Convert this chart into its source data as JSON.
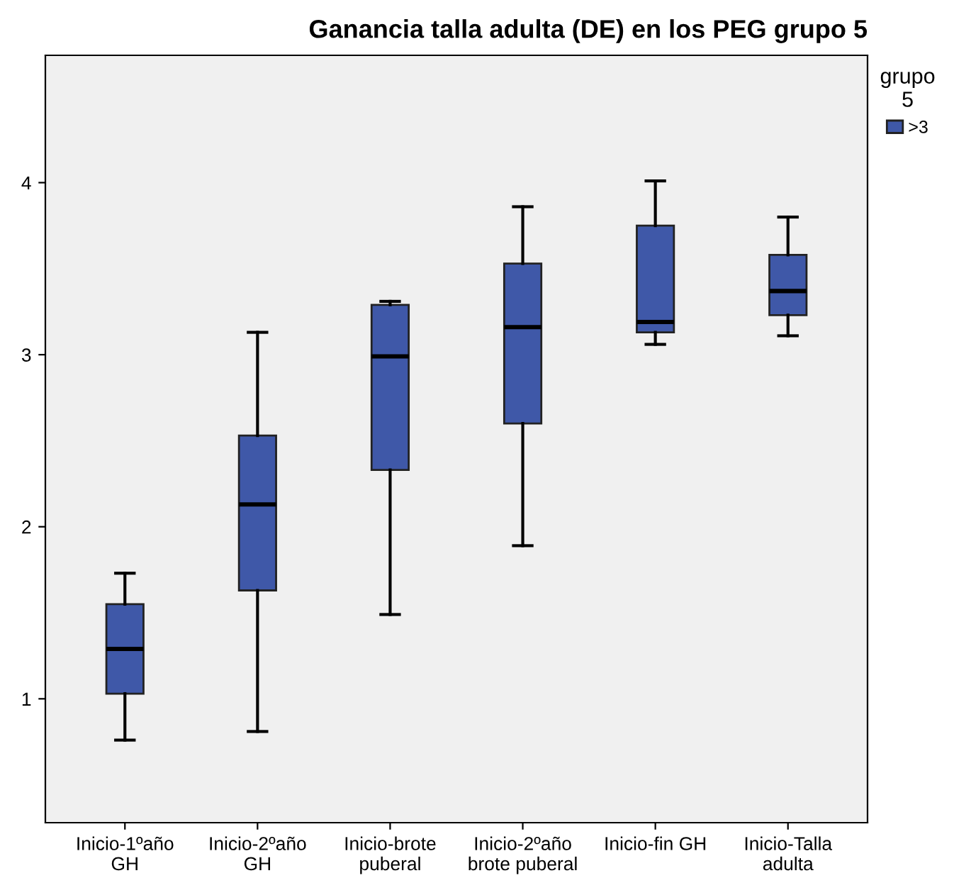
{
  "chart_data": {
    "type": "box",
    "title": "Ganancia talla adulta (DE) en los PEG grupo 5",
    "categories": [
      "Inicio-1ºaño\nGH",
      "Inicio-2ºaño\nGH",
      "Inicio-brote\npuberal",
      "Inicio-2ºaño\nbrote puberal",
      "Inicio-fin GH",
      "Inicio-Talla\nadulta"
    ],
    "legend_title": "grupo\n5",
    "legend": "top right",
    "grid": false,
    "series": [
      {
        "name": ">3",
        "color": "#3f58a8",
        "boxes": [
          {
            "low": 0.76,
            "q1": 1.03,
            "median": 1.29,
            "q3": 1.55,
            "high": 1.73
          },
          {
            "low": 0.81,
            "q1": 1.63,
            "median": 2.13,
            "q3": 2.53,
            "high": 3.13
          },
          {
            "low": 1.49,
            "q1": 2.33,
            "median": 2.99,
            "q3": 3.29,
            "high": 3.31
          },
          {
            "low": 1.89,
            "q1": 2.6,
            "median": 3.16,
            "q3": 3.53,
            "high": 3.86
          },
          {
            "low": 3.06,
            "q1": 3.13,
            "median": 3.19,
            "q3": 3.75,
            "high": 4.01
          },
          {
            "low": 3.11,
            "q1": 3.23,
            "median": 3.37,
            "q3": 3.58,
            "high": 3.8
          }
        ]
      }
    ],
    "ylim": [
      0.28,
      4.74
    ],
    "yticks": [
      1,
      2,
      3,
      4
    ]
  }
}
